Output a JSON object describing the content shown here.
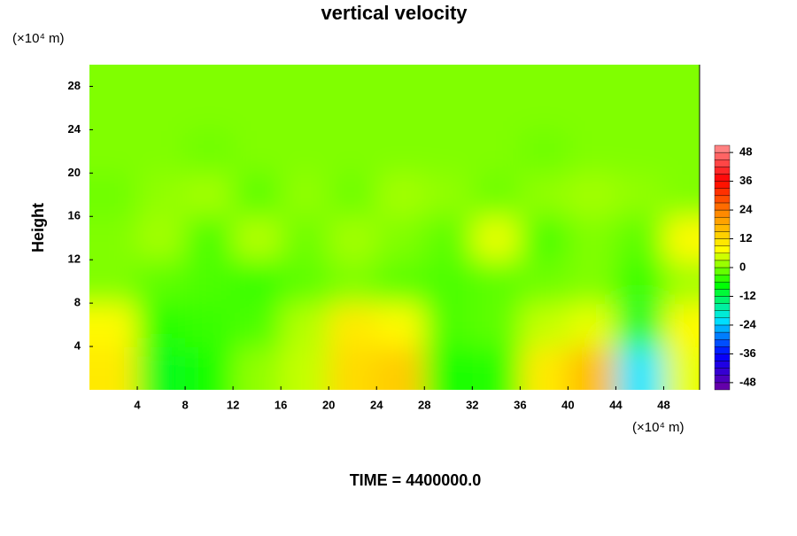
{
  "chart_data": {
    "type": "heatmap",
    "title": "vertical velocity",
    "ylabel": "Height",
    "yunit": "(×10⁴ m)",
    "xunit": "(×10⁴ m)",
    "footer": "TIME = 4400000.0",
    "x": [
      2,
      6,
      10,
      14,
      18,
      22,
      26,
      30,
      34,
      38,
      42,
      46,
      50
    ],
    "y": [
      2,
      6,
      10,
      14,
      18,
      22,
      26,
      30
    ],
    "z": [
      [
        10,
        -9,
        -6,
        1,
        4,
        12,
        14,
        -6,
        -5,
        10,
        16,
        -22,
        6
      ],
      [
        8,
        -5,
        -4,
        -3,
        3,
        10,
        8,
        -3,
        -2,
        4,
        6,
        -10,
        8
      ],
      [
        0,
        -2,
        -3,
        -4,
        -2,
        0,
        -2,
        -3,
        -2,
        -1,
        0,
        -4,
        2
      ],
      [
        0,
        2,
        -3,
        3,
        -1,
        2,
        0,
        -2,
        6,
        -3,
        0,
        -2,
        8
      ],
      [
        -1,
        1,
        2,
        -2,
        1,
        -1,
        2,
        1,
        -1,
        1,
        2,
        1,
        0
      ],
      [
        0,
        0,
        -1,
        0,
        0,
        0,
        0,
        0,
        0,
        -1,
        0,
        0,
        0
      ],
      [
        0,
        0,
        0,
        0,
        0,
        0,
        0,
        0,
        0,
        0,
        0,
        0,
        0
      ],
      [
        0,
        0,
        0,
        0,
        0,
        0,
        0,
        0,
        0,
        0,
        0,
        0,
        0
      ]
    ],
    "xlim": [
      0,
      51
    ],
    "ylim": [
      0,
      30
    ],
    "xticks": [
      4,
      8,
      12,
      16,
      20,
      24,
      28,
      32,
      36,
      40,
      44,
      48
    ],
    "yticks": [
      4,
      8,
      12,
      16,
      20,
      24,
      28
    ],
    "clim": [
      -51,
      51
    ],
    "cticks": [
      -48,
      -36,
      -24,
      -12,
      0,
      12,
      24,
      36,
      48
    ],
    "colormap": [
      "#7000a0",
      "#0000ff",
      "#00e8ff",
      "#00ff00",
      "#ffff00",
      "#ff9000",
      "#ff0000",
      "#ff9090"
    ]
  }
}
